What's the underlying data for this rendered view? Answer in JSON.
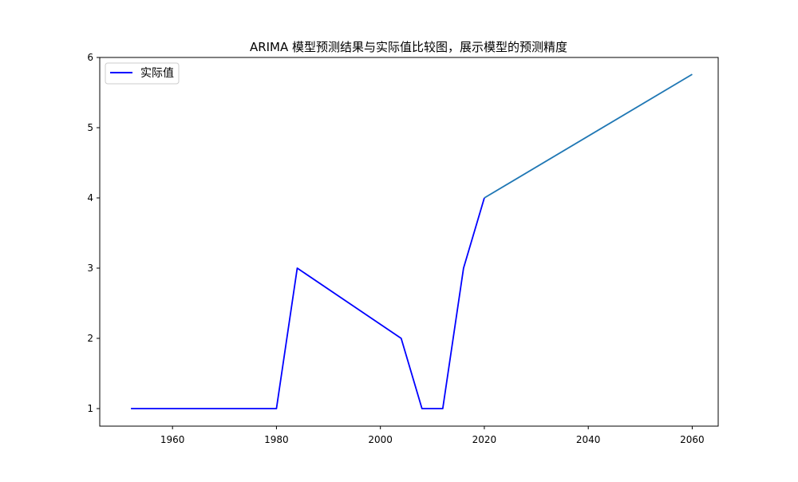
{
  "chart_data": {
    "type": "line",
    "title": "ARIMA 模型预测结果与实际值比较图，展示模型的预测精度",
    "xlabel": "",
    "ylabel": "",
    "xlim": [
      1946,
      2065
    ],
    "ylim": [
      0.75,
      6
    ],
    "x_ticks": [
      1960,
      1980,
      2000,
      2020,
      2040,
      2060
    ],
    "y_ticks": [
      1,
      2,
      3,
      4,
      5,
      6
    ],
    "grid": false,
    "legend_position": "top-left",
    "series": [
      {
        "name": "实际值",
        "color": "#0000ff",
        "x": [
          1952,
          1980,
          1984,
          2004,
          2008,
          2012,
          2016,
          2020
        ],
        "y": [
          1,
          1,
          3,
          2,
          1,
          1,
          3,
          4
        ]
      },
      {
        "color": "#1f77b4",
        "x": [
          2020,
          2060
        ],
        "y": [
          4,
          5.76
        ]
      }
    ]
  }
}
